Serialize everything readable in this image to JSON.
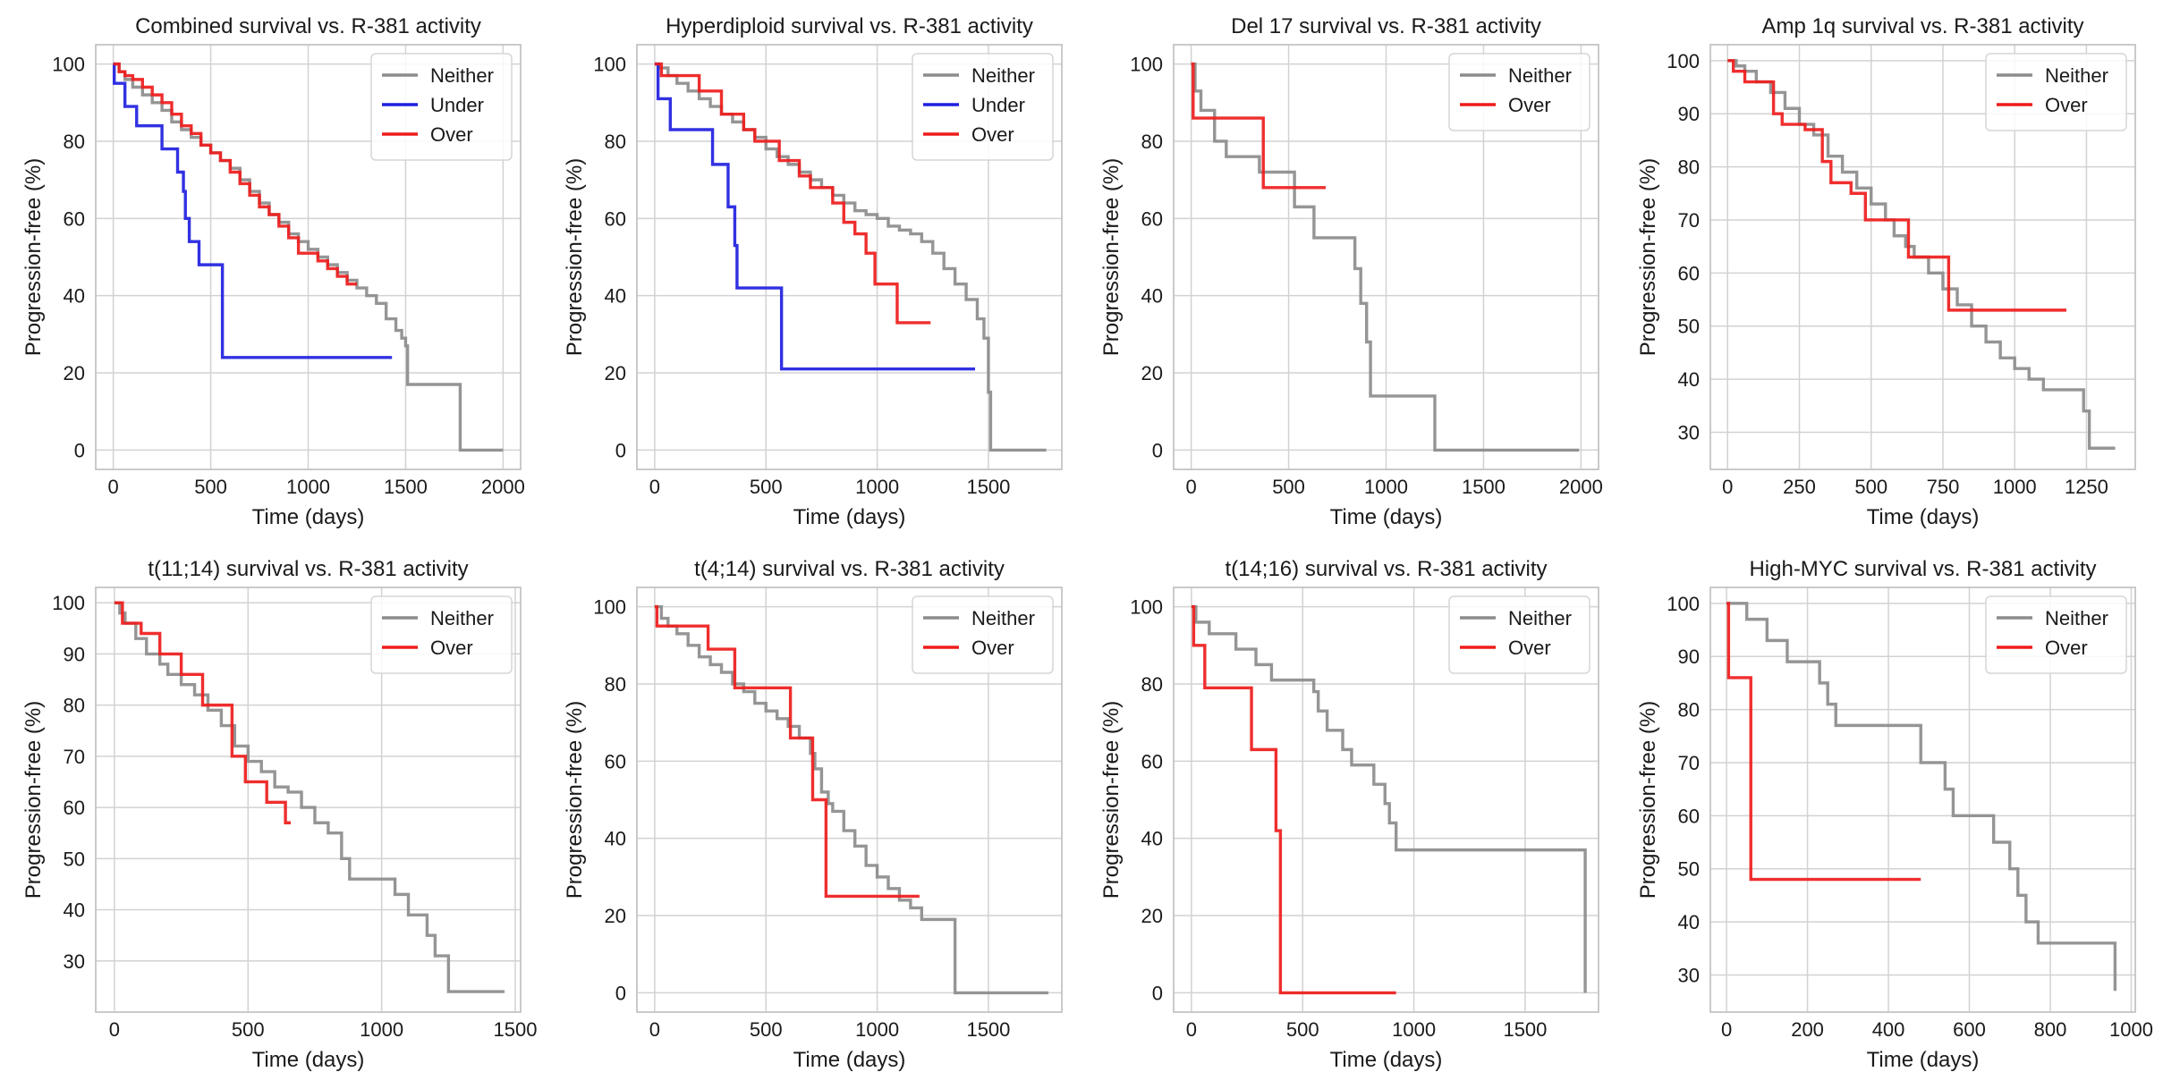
{
  "colors": {
    "Neither": "#8c8c8c",
    "Under": "#1f1fe0",
    "Over": "#ee1c1c",
    "grid": "#d2d2d2",
    "frame": "#c4c4c4"
  },
  "chart_data": [
    {
      "type": "line",
      "step": true,
      "title": "Combined survival vs. R-381 activity",
      "xlabel": "Time (days)",
      "ylabel": "Progression-free (%)",
      "xticks": [
        0,
        500,
        1000,
        1500,
        2000
      ],
      "yticks": [
        0,
        20,
        40,
        60,
        80,
        100
      ],
      "xlim": [
        -90,
        2090
      ],
      "ylim": [
        -5,
        105
      ],
      "legend": "top-right",
      "grid": true,
      "series": [
        {
          "name": "Neither",
          "x": [
            0,
            30,
            60,
            100,
            150,
            200,
            250,
            300,
            350,
            400,
            450,
            500,
            550,
            600,
            650,
            700,
            750,
            800,
            850,
            900,
            950,
            1000,
            1050,
            1100,
            1150,
            1200,
            1250,
            1300,
            1350,
            1400,
            1450,
            1480,
            1500,
            1510,
            1770,
            1780,
            2000
          ],
          "y": [
            100,
            98,
            96,
            94,
            92,
            90,
            88,
            85,
            83,
            81,
            79,
            77,
            75,
            73,
            70,
            67,
            64,
            61,
            59,
            56,
            54,
            52,
            50,
            48,
            46,
            44,
            42,
            40,
            38,
            34,
            31,
            29,
            27,
            17,
            17,
            0,
            0
          ]
        },
        {
          "name": "Under",
          "x": [
            0,
            5,
            60,
            120,
            250,
            330,
            360,
            370,
            390,
            440,
            540,
            560,
            1430
          ],
          "y": [
            100,
            95,
            89,
            84,
            78,
            72,
            67,
            60,
            54,
            48,
            48,
            24,
            24
          ]
        },
        {
          "name": "Over",
          "x": [
            0,
            30,
            60,
            100,
            150,
            200,
            250,
            300,
            350,
            400,
            450,
            500,
            550,
            600,
            650,
            700,
            750,
            800,
            850,
            900,
            950,
            1000,
            1050,
            1100,
            1150,
            1200,
            1250
          ],
          "y": [
            100,
            98,
            97,
            96,
            94,
            92,
            90,
            87,
            84,
            82,
            79,
            77,
            75,
            72,
            69,
            66,
            63,
            61,
            58,
            55,
            51,
            51,
            49,
            47,
            45,
            43,
            43
          ]
        }
      ]
    },
    {
      "type": "line",
      "step": true,
      "title": "Hyperdiploid survival vs. R-381 activity",
      "xlabel": "Time (days)",
      "ylabel": "Progression-free (%)",
      "xticks": [
        0,
        500,
        1000,
        1500
      ],
      "yticks": [
        0,
        20,
        40,
        60,
        80,
        100
      ],
      "xlim": [
        -80,
        1830
      ],
      "ylim": [
        -5,
        105
      ],
      "legend": "top-right",
      "grid": true,
      "series": [
        {
          "name": "Neither",
          "x": [
            0,
            20,
            60,
            100,
            150,
            200,
            250,
            300,
            350,
            400,
            450,
            500,
            550,
            600,
            650,
            700,
            750,
            800,
            850,
            900,
            950,
            1000,
            1050,
            1100,
            1150,
            1200,
            1250,
            1300,
            1350,
            1400,
            1450,
            1480,
            1500,
            1510,
            1760
          ],
          "y": [
            100,
            99,
            97,
            95,
            93,
            91,
            89,
            87,
            85,
            83,
            81,
            78,
            76,
            74,
            72,
            70,
            68,
            66,
            64,
            62,
            61,
            60,
            58,
            57,
            56,
            54,
            51,
            47,
            43,
            39,
            34,
            29,
            15,
            0,
            0
          ]
        },
        {
          "name": "Under",
          "x": [
            0,
            15,
            70,
            260,
            330,
            360,
            370,
            560,
            570,
            1440
          ],
          "y": [
            100,
            91,
            83,
            74,
            63,
            53,
            42,
            42,
            21,
            21
          ]
        },
        {
          "name": "Over",
          "x": [
            0,
            30,
            100,
            200,
            300,
            400,
            450,
            560,
            650,
            700,
            800,
            850,
            900,
            950,
            990,
            1090,
            1240
          ],
          "y": [
            100,
            97,
            97,
            93,
            87,
            83,
            80,
            75,
            71,
            68,
            64,
            59,
            56,
            51,
            43,
            33,
            33
          ]
        }
      ]
    },
    {
      "type": "line",
      "step": true,
      "title": "Del 17 survival vs. R-381 activity",
      "xlabel": "Time (days)",
      "ylabel": "Progression-free (%)",
      "xticks": [
        0,
        500,
        1000,
        1500,
        2000
      ],
      "yticks": [
        0,
        20,
        40,
        60,
        80,
        100
      ],
      "xlim": [
        -90,
        2090
      ],
      "ylim": [
        -5,
        105
      ],
      "legend": "top-right",
      "grid": true,
      "series": [
        {
          "name": "Neither",
          "x": [
            0,
            20,
            50,
            120,
            180,
            350,
            530,
            630,
            840,
            870,
            900,
            920,
            1250,
            1990
          ],
          "y": [
            100,
            93,
            88,
            80,
            76,
            72,
            63,
            55,
            47,
            38,
            28,
            14,
            0,
            0
          ]
        },
        {
          "name": "Over",
          "x": [
            0,
            10,
            370,
            690
          ],
          "y": [
            100,
            86,
            68,
            68
          ]
        }
      ]
    },
    {
      "type": "line",
      "step": true,
      "title": "Amp 1q survival vs. R-381 activity",
      "xlabel": "Time (days)",
      "ylabel": "Progression-free (%)",
      "xticks": [
        0,
        250,
        500,
        750,
        1000,
        1250
      ],
      "yticks": [
        30,
        40,
        50,
        60,
        70,
        80,
        90,
        100
      ],
      "xlim": [
        -60,
        1420
      ],
      "ylim": [
        23,
        103
      ],
      "legend": "top-right",
      "grid": true,
      "series": [
        {
          "name": "Neither",
          "x": [
            0,
            30,
            60,
            100,
            150,
            200,
            250,
            300,
            350,
            400,
            450,
            500,
            550,
            580,
            620,
            650,
            700,
            750,
            800,
            850,
            900,
            950,
            1000,
            1050,
            1100,
            1150,
            1200,
            1240,
            1260,
            1350
          ],
          "y": [
            100,
            99,
            98,
            96,
            94,
            91,
            88,
            86,
            82,
            79,
            76,
            73,
            70,
            67,
            65,
            63,
            60,
            57,
            54,
            50,
            47,
            44,
            42,
            40,
            38,
            38,
            38,
            34,
            27,
            27
          ]
        },
        {
          "name": "Over",
          "x": [
            0,
            20,
            60,
            160,
            190,
            270,
            330,
            360,
            430,
            480,
            630,
            770,
            1180
          ],
          "y": [
            100,
            98,
            96,
            90,
            88,
            87,
            81,
            77,
            75,
            70,
            63,
            53,
            53
          ]
        }
      ]
    },
    {
      "type": "line",
      "step": true,
      "title": "t(11;14) survival vs. R-381 activity",
      "xlabel": "Time (days)",
      "ylabel": "Progression-free (%)",
      "xticks": [
        0,
        500,
        1000,
        1500
      ],
      "yticks": [
        30,
        40,
        50,
        60,
        70,
        80,
        90,
        100
      ],
      "xlim": [
        -70,
        1520
      ],
      "ylim": [
        20,
        103
      ],
      "legend": "top-right",
      "grid": true,
      "series": [
        {
          "name": "Neither",
          "x": [
            0,
            20,
            40,
            80,
            120,
            170,
            200,
            250,
            300,
            350,
            400,
            450,
            500,
            550,
            600,
            650,
            700,
            750,
            800,
            850,
            880,
            1050,
            1100,
            1170,
            1200,
            1250,
            1460
          ],
          "y": [
            100,
            98,
            96,
            93,
            90,
            88,
            86,
            84,
            82,
            79,
            76,
            72,
            69,
            67,
            64,
            63,
            60,
            57,
            55,
            50,
            46,
            43,
            39,
            35,
            31,
            24,
            24
          ]
        },
        {
          "name": "Over",
          "x": [
            0,
            30,
            100,
            170,
            250,
            330,
            440,
            490,
            570,
            640,
            660
          ],
          "y": [
            100,
            96,
            94,
            90,
            86,
            80,
            70,
            65,
            61,
            57,
            57
          ]
        }
      ]
    },
    {
      "type": "line",
      "step": true,
      "title": "t(4;14) survival vs. R-381 activity",
      "xlabel": "Time (days)",
      "ylabel": "Progression-free (%)",
      "xticks": [
        0,
        500,
        1000,
        1500
      ],
      "yticks": [
        0,
        20,
        40,
        60,
        80,
        100
      ],
      "xlim": [
        -80,
        1830
      ],
      "ylim": [
        -5,
        105
      ],
      "legend": "top-right",
      "grid": true,
      "series": [
        {
          "name": "Neither",
          "x": [
            0,
            30,
            60,
            100,
            150,
            200,
            250,
            300,
            350,
            400,
            450,
            500,
            550,
            600,
            650,
            700,
            720,
            750,
            780,
            800,
            850,
            900,
            950,
            1000,
            1050,
            1100,
            1150,
            1200,
            1350,
            1770
          ],
          "y": [
            100,
            97,
            95,
            93,
            90,
            87,
            85,
            83,
            80,
            78,
            75,
            73,
            71,
            69,
            66,
            62,
            58,
            52,
            49,
            47,
            42,
            38,
            33,
            30,
            27,
            24,
            22,
            19,
            0,
            0
          ]
        },
        {
          "name": "Over",
          "x": [
            0,
            10,
            240,
            360,
            610,
            710,
            770,
            1190
          ],
          "y": [
            100,
            95,
            89,
            79,
            66,
            50,
            25,
            25
          ]
        }
      ]
    },
    {
      "type": "line",
      "step": true,
      "title": "t(14;16) survival vs. R-381 activity",
      "xlabel": "Time (days)",
      "ylabel": "Progression-free (%)",
      "xticks": [
        0,
        500,
        1000,
        1500
      ],
      "yticks": [
        0,
        20,
        40,
        60,
        80,
        100
      ],
      "xlim": [
        -80,
        1830
      ],
      "ylim": [
        -5,
        105
      ],
      "legend": "top-right",
      "grid": true,
      "series": [
        {
          "name": "Neither",
          "x": [
            0,
            20,
            80,
            200,
            290,
            360,
            550,
            570,
            610,
            680,
            720,
            820,
            870,
            890,
            920,
            1770
          ],
          "y": [
            100,
            96,
            93,
            89,
            85,
            81,
            78,
            73,
            68,
            63,
            59,
            54,
            49,
            44,
            37,
            0
          ]
        },
        {
          "name": "Over",
          "x": [
            0,
            10,
            60,
            270,
            380,
            400,
            920
          ],
          "y": [
            100,
            90,
            79,
            63,
            42,
            0,
            0
          ]
        }
      ]
    },
    {
      "type": "line",
      "step": true,
      "title": "High-MYC survival vs. R-381 activity",
      "xlabel": "Time (days)",
      "ylabel": "Progression-free (%)",
      "xticks": [
        0,
        200,
        400,
        600,
        800,
        1000
      ],
      "yticks": [
        30,
        40,
        50,
        60,
        70,
        80,
        90,
        100
      ],
      "xlim": [
        -40,
        1010
      ],
      "ylim": [
        23,
        103
      ],
      "legend": "top-right",
      "grid": true,
      "series": [
        {
          "name": "Neither",
          "x": [
            0,
            50,
            100,
            150,
            230,
            250,
            270,
            480,
            540,
            560,
            660,
            700,
            720,
            740,
            770,
            960
          ],
          "y": [
            100,
            97,
            93,
            89,
            85,
            81,
            77,
            70,
            65,
            60,
            55,
            50,
            45,
            40,
            36,
            27
          ]
        },
        {
          "name": "Over",
          "x": [
            0,
            5,
            60,
            480
          ],
          "y": [
            100,
            86,
            48,
            48
          ]
        }
      ]
    }
  ]
}
